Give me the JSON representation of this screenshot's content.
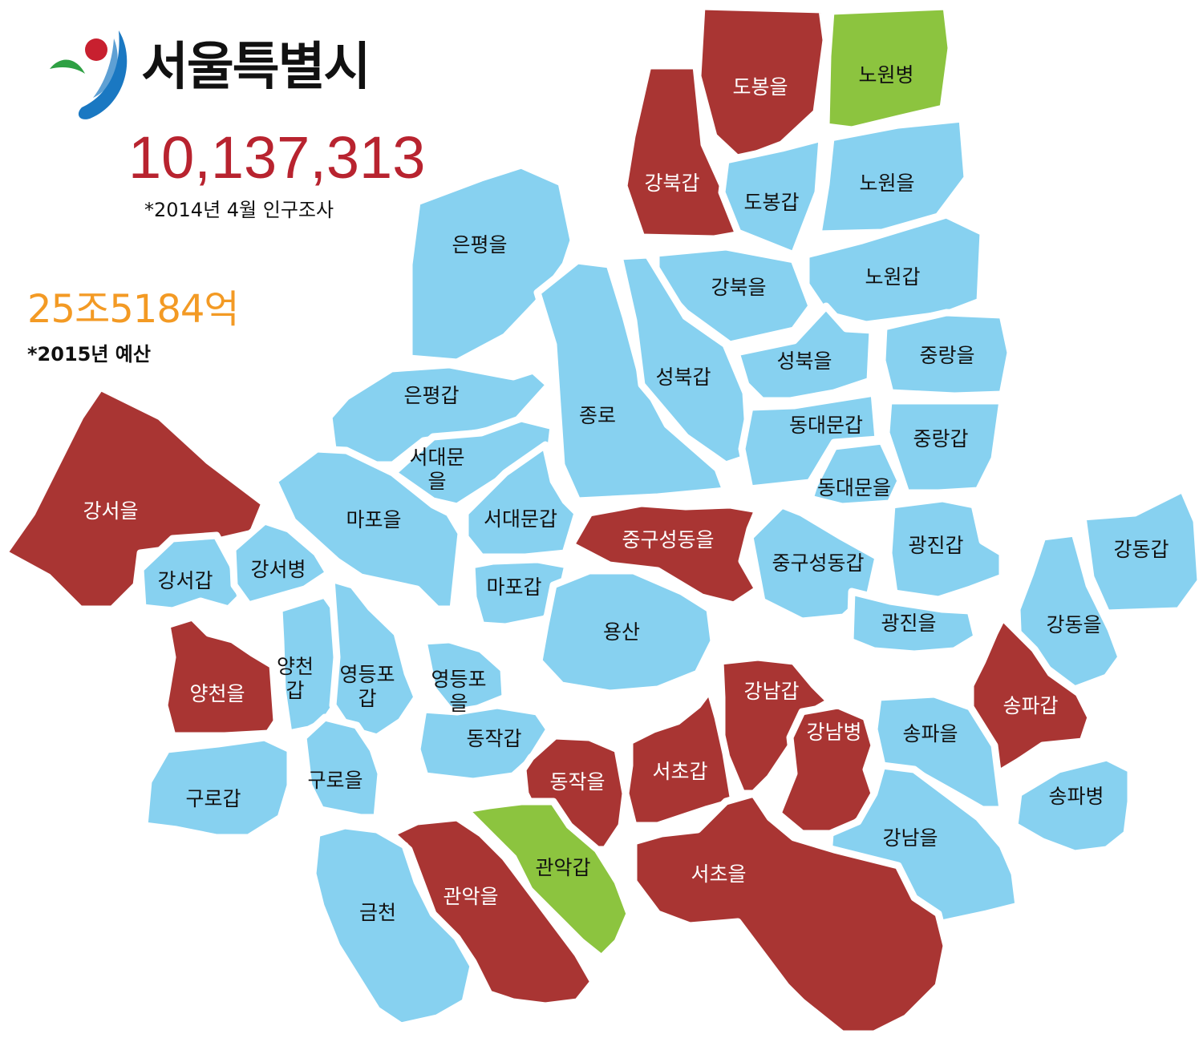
{
  "header": {
    "title": "서울특별시",
    "population": "10,137,313",
    "population_note": "*2014년 4월 인구조사",
    "budget": "25조5184억",
    "budget_note": "*2015년 예산"
  },
  "colors": {
    "red": "#a93533",
    "blue": "#87d1f0",
    "green": "#8cc43f",
    "population_text": "#b8232f",
    "budget_text": "#f39a24"
  },
  "districts": [
    {
      "id": "dobong-eul",
      "label": "도봉을",
      "color": "red"
    },
    {
      "id": "nowon-byeong",
      "label": "노원병",
      "color": "green"
    },
    {
      "id": "gangbuk-gap",
      "label": "강북갑",
      "color": "red"
    },
    {
      "id": "dobong-gap",
      "label": "도봉갑",
      "color": "blue"
    },
    {
      "id": "nowon-eul",
      "label": "노원을",
      "color": "blue"
    },
    {
      "id": "eunpyeong-eul",
      "label": "은평을",
      "color": "blue"
    },
    {
      "id": "gangbuk-eul",
      "label": "강북을",
      "color": "blue"
    },
    {
      "id": "nowon-gap",
      "label": "노원갑",
      "color": "blue"
    },
    {
      "id": "jongno",
      "label": "종로",
      "color": "blue"
    },
    {
      "id": "seongbuk-gap",
      "label": "성북갑",
      "color": "blue"
    },
    {
      "id": "seongbuk-eul",
      "label": "성북을",
      "color": "blue"
    },
    {
      "id": "jungnang-eul",
      "label": "중랑을",
      "color": "blue"
    },
    {
      "id": "eunpyeong-gap",
      "label": "은평갑",
      "color": "blue"
    },
    {
      "id": "dongdaemun-gap",
      "label": "동대문갑",
      "color": "blue"
    },
    {
      "id": "jungnang-gap",
      "label": "중랑갑",
      "color": "blue"
    },
    {
      "id": "seodaemun-eul",
      "label": "서대문\n을",
      "color": "blue"
    },
    {
      "id": "dongdaemun-eul",
      "label": "동대문을",
      "color": "blue"
    },
    {
      "id": "gangseo-eul",
      "label": "강서을",
      "color": "red"
    },
    {
      "id": "mapo-eul",
      "label": "마포을",
      "color": "blue"
    },
    {
      "id": "seodaemun-gap",
      "label": "서대문갑",
      "color": "blue"
    },
    {
      "id": "jung-seongdong-eul",
      "label": "중구성동을",
      "color": "red"
    },
    {
      "id": "gwangjin-gap",
      "label": "광진갑",
      "color": "blue"
    },
    {
      "id": "gangdong-gap",
      "label": "강동갑",
      "color": "blue"
    },
    {
      "id": "gangseo-gap",
      "label": "강서갑",
      "color": "blue"
    },
    {
      "id": "gangseo-byeong",
      "label": "강서병",
      "color": "blue"
    },
    {
      "id": "jung-seongdong-gap",
      "label": "중구성동갑",
      "color": "blue"
    },
    {
      "id": "mapo-gap",
      "label": "마포갑",
      "color": "blue"
    },
    {
      "id": "yongsan",
      "label": "용산",
      "color": "blue"
    },
    {
      "id": "gwangjin-eul",
      "label": "광진을",
      "color": "blue"
    },
    {
      "id": "gangdong-eul",
      "label": "강동을",
      "color": "blue"
    },
    {
      "id": "yangcheon-eul",
      "label": "양천을",
      "color": "red"
    },
    {
      "id": "yangcheon-gap",
      "label": "양천\n갑",
      "color": "blue"
    },
    {
      "id": "yeongdeungpo-gap",
      "label": "영등포\n갑",
      "color": "blue"
    },
    {
      "id": "yeongdeungpo-eul",
      "label": "영등포\n을",
      "color": "blue"
    },
    {
      "id": "gangnam-gap",
      "label": "강남갑",
      "color": "red"
    },
    {
      "id": "songpa-gap",
      "label": "송파갑",
      "color": "red"
    },
    {
      "id": "dongjak-gap",
      "label": "동작갑",
      "color": "blue"
    },
    {
      "id": "gangnam-byeong",
      "label": "강남병",
      "color": "red"
    },
    {
      "id": "songpa-eul",
      "label": "송파을",
      "color": "blue"
    },
    {
      "id": "seocho-gap",
      "label": "서초갑",
      "color": "red"
    },
    {
      "id": "dongjak-eul",
      "label": "동작을",
      "color": "red"
    },
    {
      "id": "guro-eul",
      "label": "구로을",
      "color": "blue"
    },
    {
      "id": "guro-gap",
      "label": "구로갑",
      "color": "blue"
    },
    {
      "id": "songpa-byeong",
      "label": "송파병",
      "color": "blue"
    },
    {
      "id": "gangnam-eul",
      "label": "강남을",
      "color": "blue"
    },
    {
      "id": "gwanak-gap",
      "label": "관악갑",
      "color": "green"
    },
    {
      "id": "seocho-eul",
      "label": "서초을",
      "color": "red"
    },
    {
      "id": "gwanak-eul",
      "label": "관악을",
      "color": "red"
    },
    {
      "id": "geumcheon",
      "label": "금천",
      "color": "blue"
    }
  ]
}
